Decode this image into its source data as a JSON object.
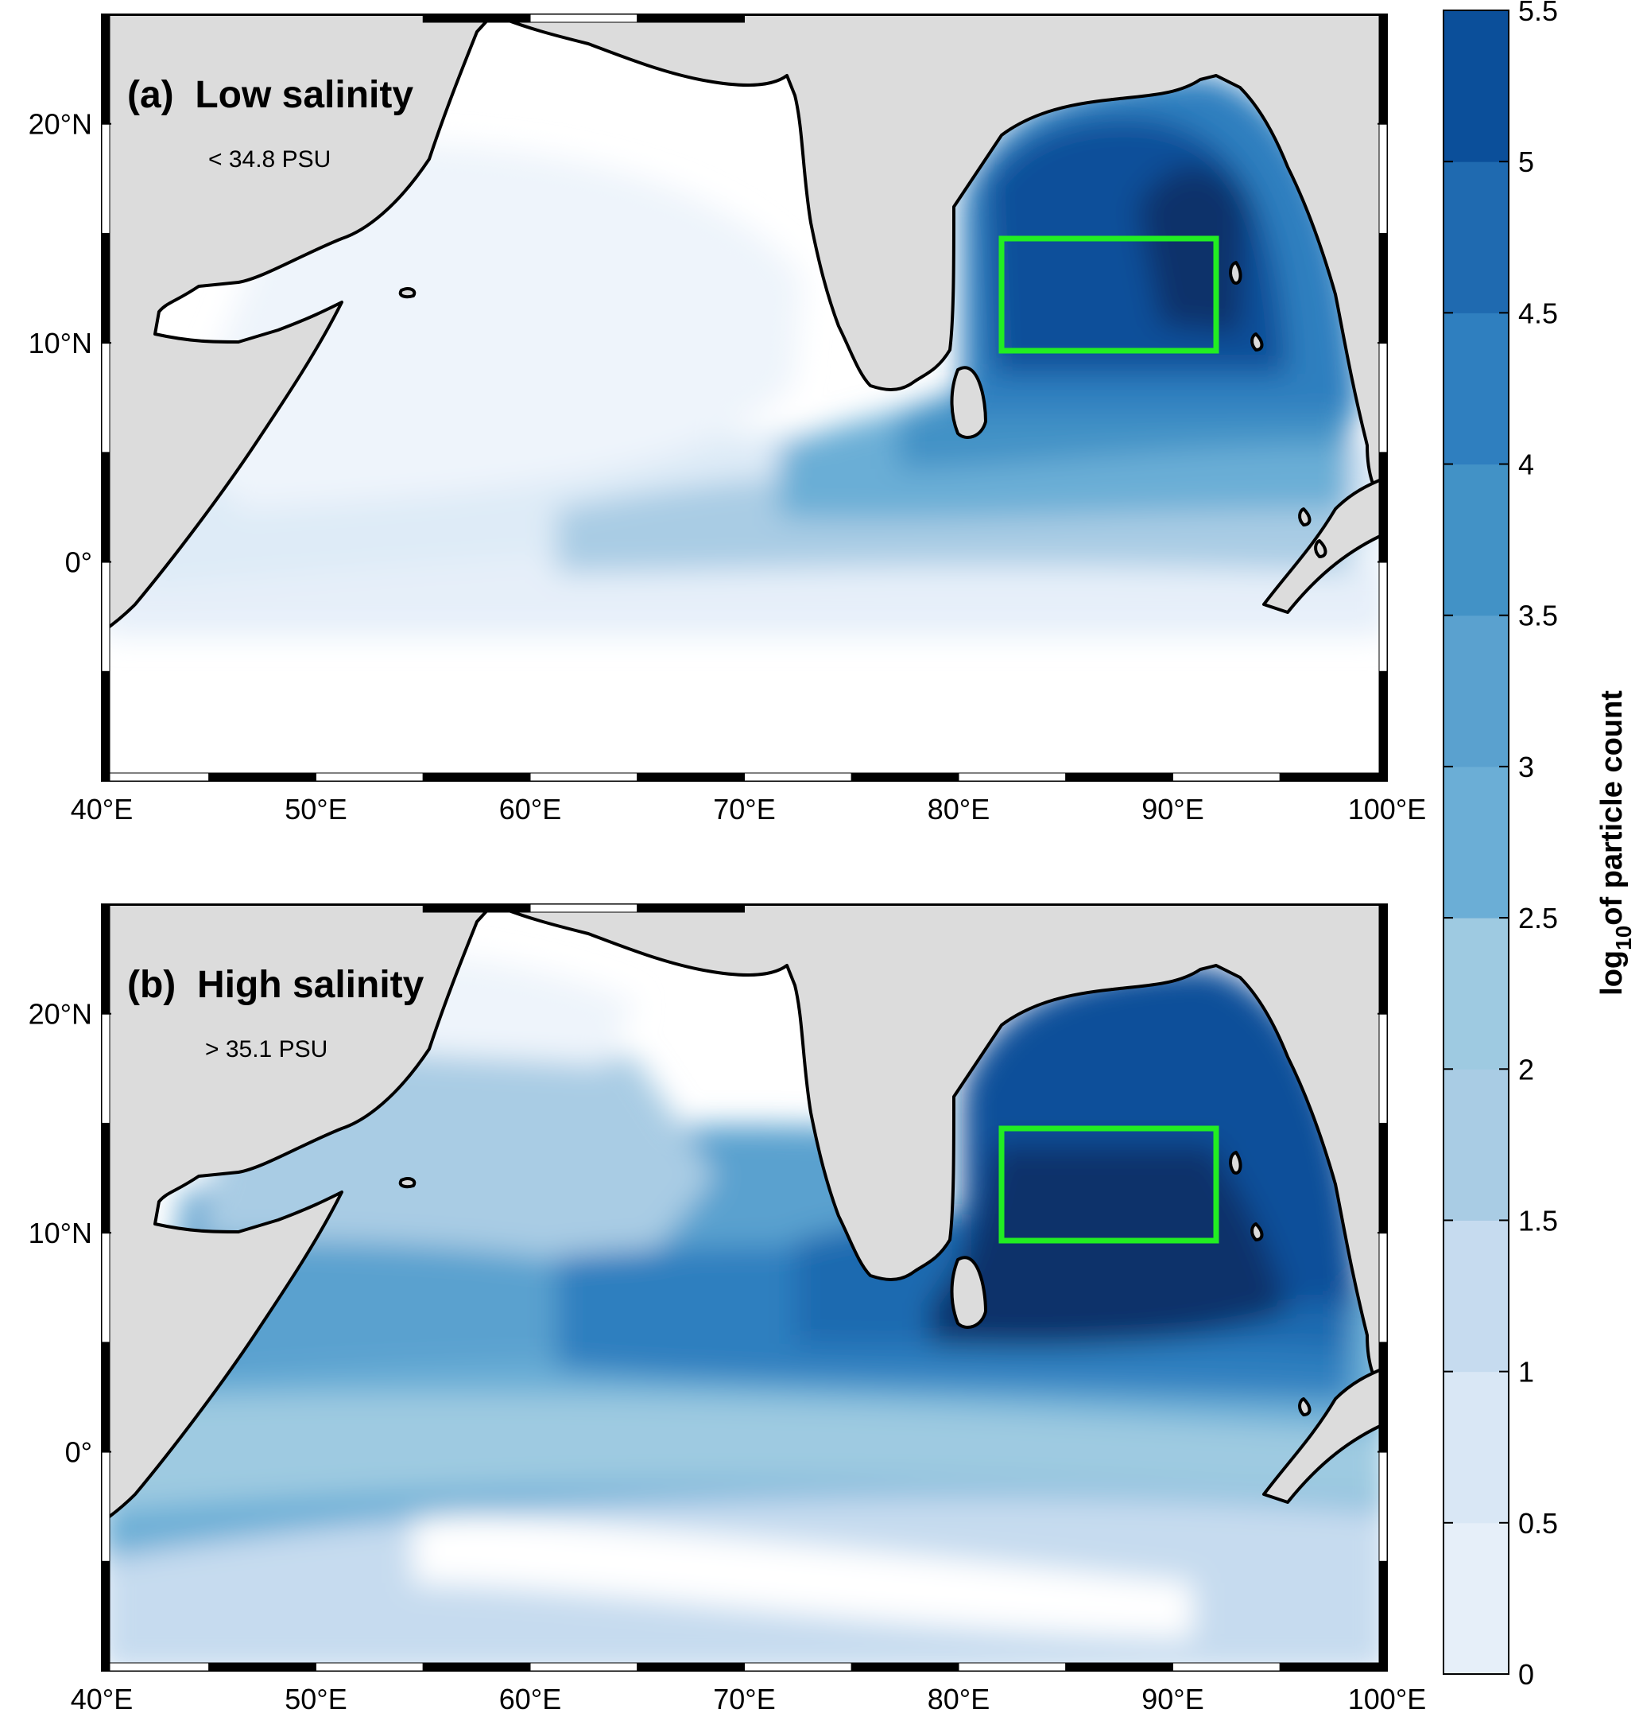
{
  "figure": {
    "panels": [
      {
        "id": "a",
        "title": "(a)  Low salinity",
        "threshold": "< 34.8 PSU",
        "region_box": {
          "lon": [
            82,
            92
          ],
          "lat": [
            10,
            15
          ],
          "color": "#22ee22"
        },
        "field_description_levels": {
          "bay_of_bengal_core": 5.0,
          "bay_of_bengal_outer": 4.5,
          "southern_bay": 4.0,
          "equatorial_band": 2.5,
          "arabian_sea": 1.0,
          "south_of_equator": 0.5
        }
      },
      {
        "id": "b",
        "title": "(b)  High salinity",
        "threshold": "> 35.1 PSU",
        "region_box": {
          "lon": [
            82,
            92
          ],
          "lat": [
            10,
            15
          ],
          "color": "#22ee22"
        },
        "field_description_levels": {
          "bay_of_bengal_core": 5.5,
          "bay_of_bengal_outer": 4.5,
          "equatorial_band": 4.0,
          "arabian_sea": 3.0,
          "northern_arabian_sea": 2.0,
          "south_of_equator": 1.0
        }
      }
    ],
    "x_ticks": [
      "40°E",
      "50°E",
      "60°E",
      "70°E",
      "80°E",
      "90°E",
      "100°E"
    ],
    "y_ticks": [
      "20°N",
      "10°N",
      "0°"
    ],
    "lon_range": [
      40,
      100
    ],
    "lat_range": [
      -10,
      25
    ],
    "colorbar": {
      "label": "of particle count",
      "label_prefix": "log",
      "label_subscript": "10",
      "ticks": [
        "0",
        "0.5",
        "1",
        "1.5",
        "2",
        "2.5",
        "3",
        "3.5",
        "4",
        "4.5",
        "5",
        "5.5"
      ],
      "colors": [
        "#f7fbff",
        "#e6eff9",
        "#d9e7f5",
        "#c6dbef",
        "#a9cce4",
        "#9ecae1",
        "#6baed6",
        "#5aa1cf",
        "#4292c6",
        "#2f7fbf",
        "#1f6ab0",
        "#0b4f9a",
        "#08306b"
      ]
    },
    "colors": {
      "land": "#dcdcdc",
      "coast": "#000000",
      "box": "#22ee22"
    }
  }
}
